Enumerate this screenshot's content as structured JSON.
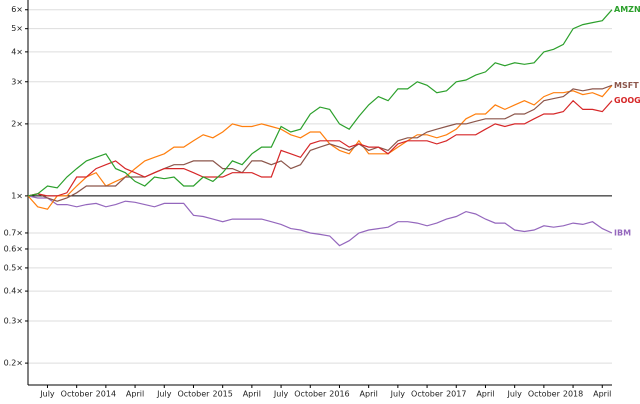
{
  "chart_data": {
    "type": "line",
    "yscale": "log",
    "grid": true,
    "x": [
      "2013-05",
      "2013-06",
      "2013-07",
      "2013-08",
      "2013-09",
      "2013-10",
      "2013-11",
      "2013-12",
      "2014-01",
      "2014-02",
      "2014-03",
      "2014-04",
      "2014-05",
      "2014-06",
      "2014-07",
      "2014-08",
      "2014-09",
      "2014-10",
      "2014-11",
      "2014-12",
      "2015-01",
      "2015-02",
      "2015-03",
      "2015-04",
      "2015-05",
      "2015-06",
      "2015-07",
      "2015-08",
      "2015-09",
      "2015-10",
      "2015-11",
      "2015-12",
      "2016-01",
      "2016-02",
      "2016-03",
      "2016-04",
      "2016-05",
      "2016-06",
      "2016-07",
      "2016-08",
      "2016-09",
      "2016-10",
      "2016-11",
      "2016-12",
      "2017-01",
      "2017-02",
      "2017-03",
      "2017-04",
      "2017-05",
      "2017-06",
      "2017-07",
      "2017-08",
      "2017-09",
      "2017-10",
      "2017-11",
      "2017-12",
      "2018-01",
      "2018-02",
      "2018-03",
      "2018-04",
      "2018-05"
    ],
    "xlim": [
      "2013-05",
      "2018-05"
    ],
    "xticks": [
      {
        "value": "2013-07",
        "label": "July"
      },
      {
        "value": "2013-10",
        "label": "October"
      },
      {
        "value": "2014-01",
        "label": "2014"
      },
      {
        "value": "2014-04",
        "label": "April"
      },
      {
        "value": "2014-07",
        "label": "July"
      },
      {
        "value": "2014-10",
        "label": "October"
      },
      {
        "value": "2015-01",
        "label": "2015"
      },
      {
        "value": "2015-04",
        "label": "April"
      },
      {
        "value": "2015-07",
        "label": "July"
      },
      {
        "value": "2015-10",
        "label": "October"
      },
      {
        "value": "2016-01",
        "label": "2016"
      },
      {
        "value": "2016-04",
        "label": "April"
      },
      {
        "value": "2016-07",
        "label": "July"
      },
      {
        "value": "2016-10",
        "label": "October"
      },
      {
        "value": "2017-01",
        "label": "2017"
      },
      {
        "value": "2017-04",
        "label": "April"
      },
      {
        "value": "2017-07",
        "label": "July"
      },
      {
        "value": "2017-10",
        "label": "October"
      },
      {
        "value": "2018-01",
        "label": "2018"
      },
      {
        "value": "2018-04",
        "label": "April"
      }
    ],
    "ylim": [
      0.162,
      6.59
    ],
    "yticks": [
      {
        "value": 0.2,
        "label": "0.2×"
      },
      {
        "value": 0.3,
        "label": "0.3×"
      },
      {
        "value": 0.4,
        "label": "0.4×"
      },
      {
        "value": 0.5,
        "label": "0.5×"
      },
      {
        "value": 0.6,
        "label": "0.6×"
      },
      {
        "value": 0.7,
        "label": "0.7×"
      },
      {
        "value": 1,
        "label": "1×"
      },
      {
        "value": 2,
        "label": "2×"
      },
      {
        "value": 3,
        "label": "3×"
      },
      {
        "value": 4,
        "label": "4×"
      },
      {
        "value": 5,
        "label": "5×"
      },
      {
        "value": 6,
        "label": "6×"
      }
    ],
    "series": [
      {
        "name": "IBM",
        "color": "#9467bd",
        "values": [
          1.0,
          0.98,
          0.98,
          0.92,
          0.92,
          0.9,
          0.92,
          0.93,
          0.9,
          0.92,
          0.95,
          0.94,
          0.92,
          0.9,
          0.93,
          0.93,
          0.93,
          0.83,
          0.82,
          0.8,
          0.78,
          0.8,
          0.8,
          0.8,
          0.8,
          0.78,
          0.76,
          0.73,
          0.72,
          0.7,
          0.69,
          0.68,
          0.62,
          0.65,
          0.7,
          0.72,
          0.73,
          0.74,
          0.78,
          0.78,
          0.77,
          0.75,
          0.77,
          0.8,
          0.82,
          0.86,
          0.84,
          0.8,
          0.77,
          0.77,
          0.72,
          0.71,
          0.72,
          0.75,
          0.74,
          0.75,
          0.77,
          0.76,
          0.78,
          0.73,
          0.7
        ]
      },
      {
        "color": "#ff7f0e",
        "values": [
          1.0,
          0.9,
          0.88,
          1.0,
          1.0,
          1.1,
          1.2,
          1.25,
          1.1,
          1.15,
          1.2,
          1.3,
          1.4,
          1.45,
          1.5,
          1.6,
          1.6,
          1.7,
          1.8,
          1.75,
          1.85,
          2.0,
          1.95,
          1.95,
          2.0,
          1.95,
          1.9,
          1.8,
          1.75,
          1.85,
          1.85,
          1.65,
          1.55,
          1.5,
          1.7,
          1.5,
          1.5,
          1.5,
          1.6,
          1.7,
          1.8,
          1.8,
          1.75,
          1.8,
          1.9,
          2.1,
          2.2,
          2.2,
          2.4,
          2.3,
          2.4,
          2.5,
          2.4,
          2.6,
          2.7,
          2.7,
          2.75,
          2.65,
          2.7,
          2.6,
          2.9
        ]
      },
      {
        "name": "MSFT",
        "color": "#8c564b",
        "values": [
          1.0,
          1.02,
          0.98,
          0.95,
          0.98,
          1.03,
          1.1,
          1.1,
          1.1,
          1.1,
          1.2,
          1.2,
          1.2,
          1.25,
          1.3,
          1.35,
          1.35,
          1.4,
          1.4,
          1.4,
          1.3,
          1.3,
          1.25,
          1.4,
          1.4,
          1.35,
          1.4,
          1.3,
          1.35,
          1.55,
          1.6,
          1.65,
          1.6,
          1.55,
          1.65,
          1.55,
          1.6,
          1.55,
          1.7,
          1.75,
          1.75,
          1.85,
          1.9,
          1.95,
          2.0,
          2.0,
          2.05,
          2.1,
          2.1,
          2.1,
          2.2,
          2.2,
          2.3,
          2.5,
          2.55,
          2.6,
          2.8,
          2.75,
          2.8,
          2.8,
          2.9
        ]
      },
      {
        "name": "GOOG",
        "color": "#d62728",
        "values": [
          1.0,
          1.02,
          1.0,
          1.0,
          1.03,
          1.2,
          1.2,
          1.3,
          1.35,
          1.4,
          1.3,
          1.25,
          1.2,
          1.25,
          1.3,
          1.3,
          1.3,
          1.25,
          1.2,
          1.2,
          1.2,
          1.25,
          1.25,
          1.25,
          1.2,
          1.2,
          1.55,
          1.5,
          1.45,
          1.65,
          1.7,
          1.7,
          1.7,
          1.6,
          1.65,
          1.6,
          1.6,
          1.5,
          1.65,
          1.7,
          1.7,
          1.7,
          1.65,
          1.7,
          1.8,
          1.8,
          1.8,
          1.9,
          2.0,
          1.95,
          2.0,
          2.0,
          2.1,
          2.2,
          2.2,
          2.25,
          2.5,
          2.3,
          2.3,
          2.25,
          2.5
        ]
      },
      {
        "name": "AMZN",
        "color": "#2ca02c",
        "values": [
          1.0,
          1.02,
          1.1,
          1.08,
          1.2,
          1.3,
          1.4,
          1.45,
          1.5,
          1.3,
          1.25,
          1.15,
          1.1,
          1.2,
          1.18,
          1.2,
          1.1,
          1.1,
          1.2,
          1.15,
          1.25,
          1.4,
          1.35,
          1.5,
          1.6,
          1.6,
          1.95,
          1.85,
          1.9,
          2.2,
          2.35,
          2.3,
          2.0,
          1.9,
          2.15,
          2.4,
          2.6,
          2.5,
          2.8,
          2.8,
          3.0,
          2.9,
          2.7,
          2.75,
          3.0,
          3.05,
          3.2,
          3.3,
          3.6,
          3.5,
          3.6,
          3.55,
          3.6,
          4.0,
          4.1,
          4.3,
          5.0,
          5.2,
          5.3,
          5.4,
          6.0
        ]
      }
    ]
  }
}
